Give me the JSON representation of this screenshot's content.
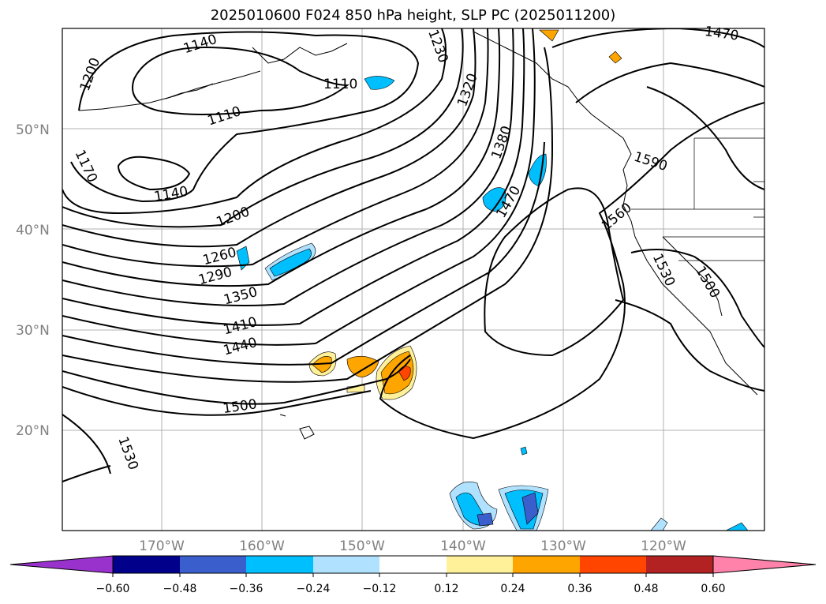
{
  "title": "2025010600 F024 850 hPa height, SLP PC (2025011200)",
  "axes": {
    "lat_labels": [
      "50°N",
      "40°N",
      "30°N",
      "20°N"
    ],
    "lon_labels": [
      "170°W",
      "160°W",
      "150°W",
      "140°W",
      "130°W",
      "120°W"
    ]
  },
  "contour_labels": [
    "1140",
    "1200",
    "1110",
    "1230",
    "1170",
    "1110",
    "1320",
    "1140",
    "1380",
    "1200",
    "1470",
    "1260",
    "1590",
    "1290",
    "1560",
    "1350",
    "1530",
    "1500",
    "1410",
    "1440",
    "1500",
    "1530",
    "1470"
  ],
  "colorbar": {
    "tick_labels": [
      "−0.60",
      "−0.48",
      "−0.36",
      "−0.24",
      "−0.12",
      "0.12",
      "0.24",
      "0.36",
      "0.48",
      "0.60"
    ],
    "colors": [
      "#9932cc",
      "#00008b",
      "#3a5fcd",
      "#00bfff",
      "#b0e2ff",
      "#ffffff",
      "#fff09a",
      "#ffa500",
      "#ff4500",
      "#b22222",
      "#ff82ab"
    ]
  }
}
